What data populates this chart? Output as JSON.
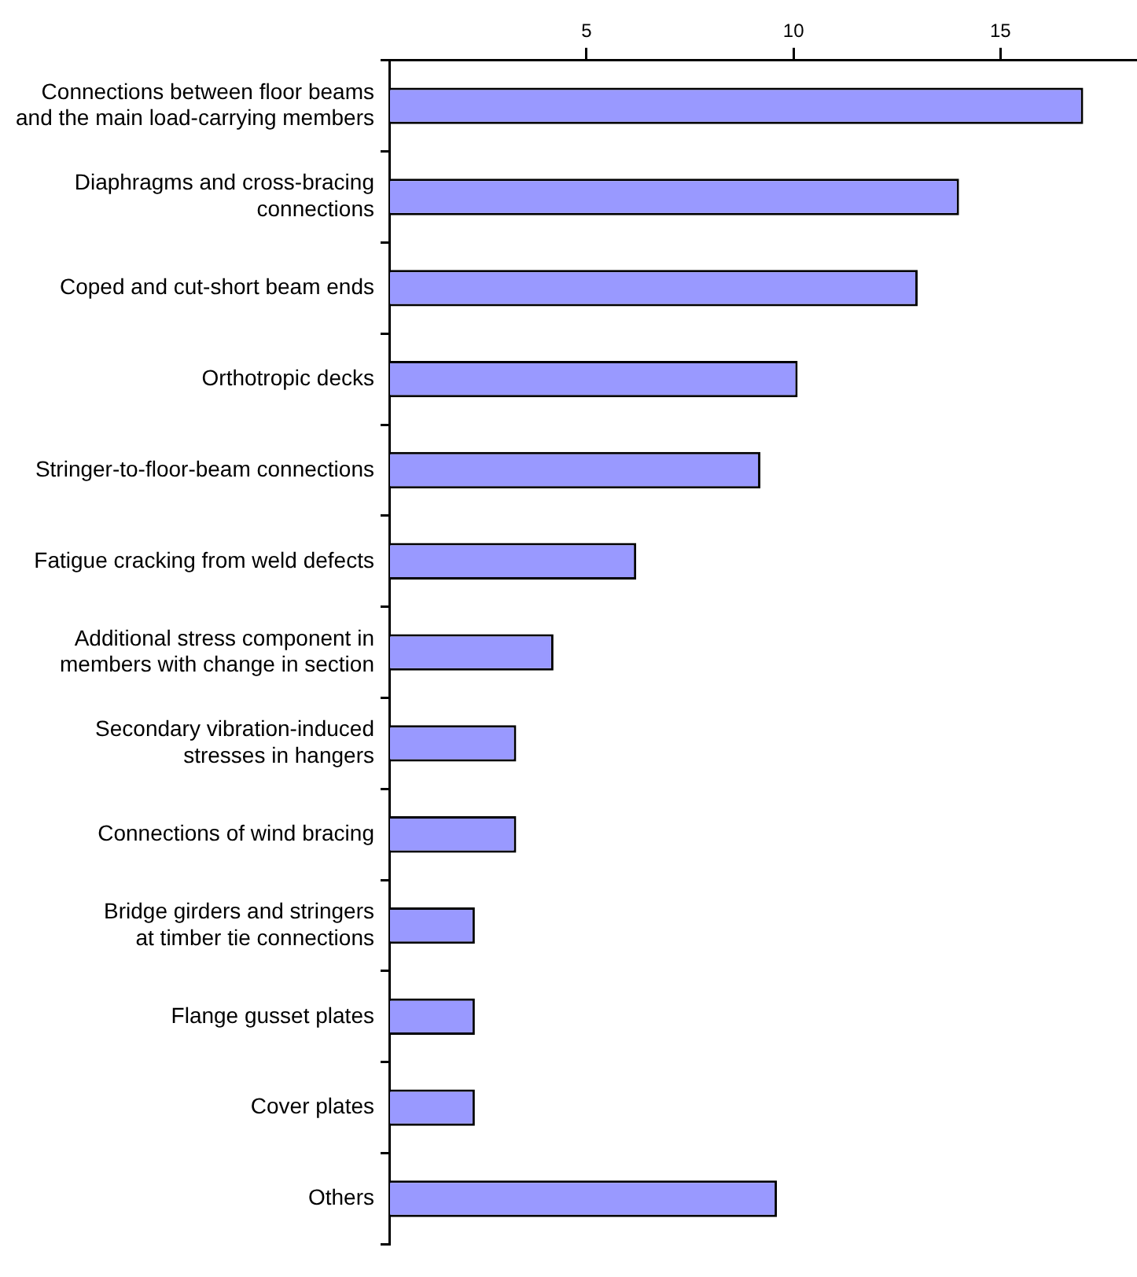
{
  "chart_data": {
    "type": "bar",
    "orientation": "horizontal",
    "categories": [
      "Connections between floor beams\nand the main load-carrying members",
      "Diaphragms and cross-bracing\nconnections",
      "Coped and cut-short beam ends",
      "Orthotropic decks",
      "Stringer-to-floor-beam connections",
      "Fatigue cracking from weld defects",
      "Additional stress component in\nmembers with change in section",
      "Secondary vibration-induced\nstresses in hangers",
      "Connections of wind bracing",
      "Bridge girders and stringers\nat timber tie connections",
      "Flange gusset plates",
      "Cover plates",
      "Others"
    ],
    "values": [
      17.0,
      14.0,
      13.0,
      10.1,
      9.2,
      6.2,
      4.2,
      3.3,
      3.3,
      2.3,
      2.3,
      2.3,
      9.6
    ],
    "color": "#9999ff",
    "xlim": [
      0.25,
      18.3
    ],
    "xticks": [
      5,
      10,
      15
    ],
    "grid": false,
    "legend": false
  }
}
